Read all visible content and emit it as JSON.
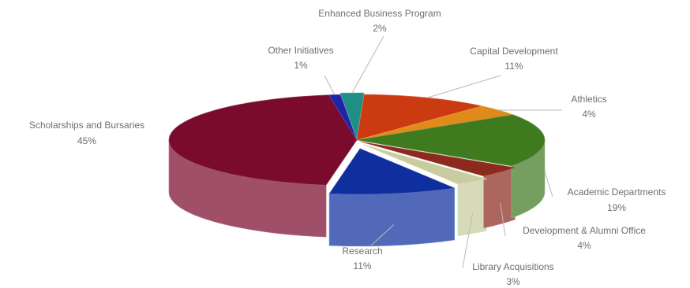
{
  "chart_data": {
    "type": "pie",
    "style": "3d-exploded-tilted",
    "title": "",
    "slices": [
      {
        "label": "Enhanced Business Program",
        "pct_label": "2%",
        "value": 2,
        "color": "#1f8f86"
      },
      {
        "label": "Capital Development",
        "pct_label": "11%",
        "value": 11,
        "color": "#cc3a12"
      },
      {
        "label": "Athletics",
        "pct_label": "4%",
        "value": 4,
        "color": "#e08a1a"
      },
      {
        "label": "Academic Departments",
        "pct_label": "19%",
        "value": 19,
        "color": "#3f7a1f"
      },
      {
        "label": "Development & Alumni Office",
        "pct_label": "4%",
        "value": 4,
        "color": "#8c2a1e"
      },
      {
        "label": "Library Acquisitions",
        "pct_label": "3%",
        "value": 3,
        "color": "#c8cc9e"
      },
      {
        "label": "Research",
        "pct_label": "11%",
        "value": 11,
        "color": "#0f2f9e"
      },
      {
        "label": "Scholarships and Bursaries",
        "pct_label": "45%",
        "value": 45,
        "color": "#7a0b2c"
      },
      {
        "label": "Other Initiatives",
        "pct_label": "1%",
        "value": 1,
        "color": "#1f23a8"
      }
    ]
  }
}
